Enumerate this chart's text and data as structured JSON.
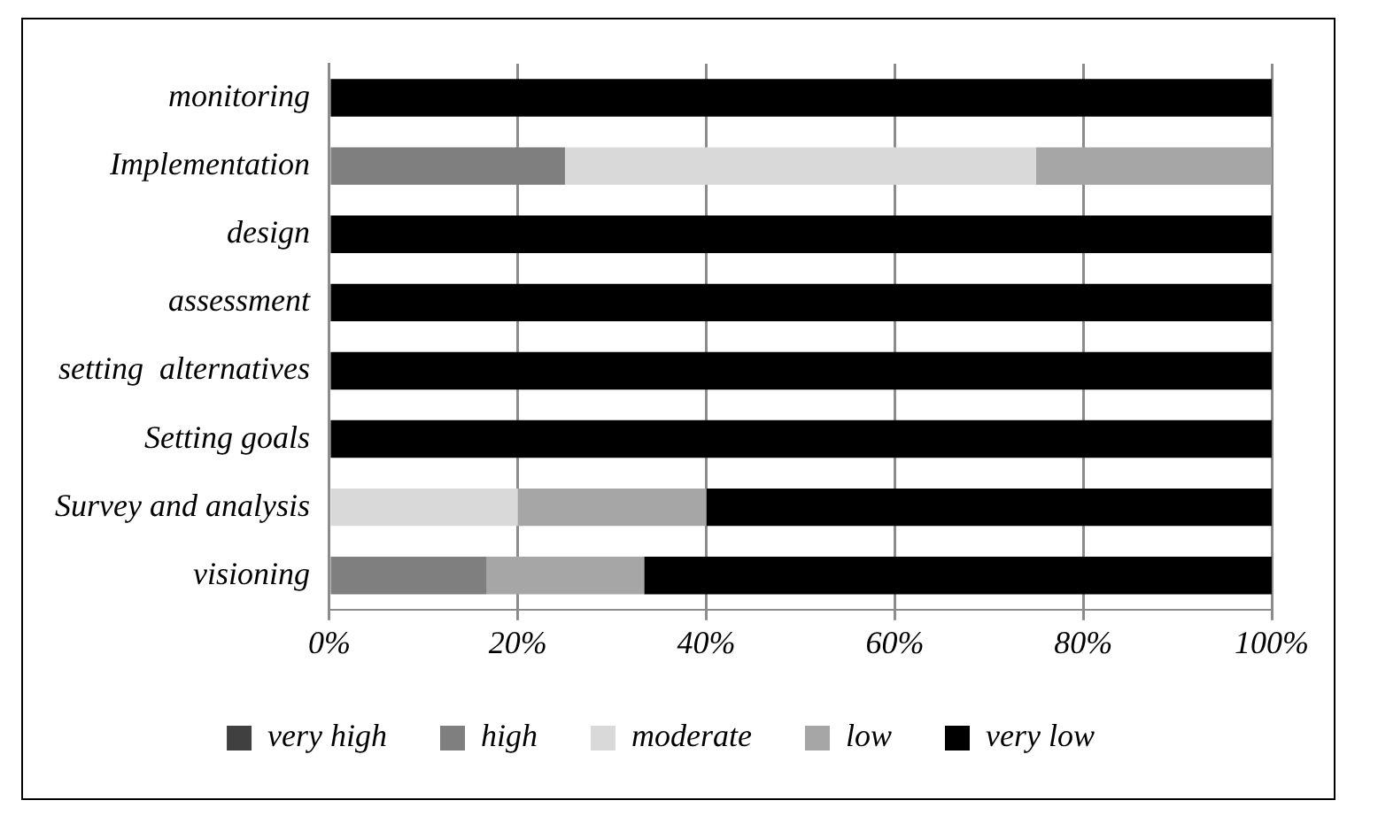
{
  "chart_data": {
    "type": "bar",
    "orientation": "horizontal",
    "stacked": true,
    "categories": [
      "monitoring",
      "Implementation",
      "design",
      "assessment",
      "setting  alternatives",
      "Setting goals",
      "Survey and analysis",
      "visioning"
    ],
    "series": [
      {
        "name": "very high",
        "color": "#404040",
        "values": [
          0,
          0,
          0,
          0,
          0,
          0,
          0,
          0
        ]
      },
      {
        "name": "high",
        "color": "#7f7f7f",
        "values": [
          0,
          25,
          0,
          0,
          0,
          0,
          0,
          16.7
        ]
      },
      {
        "name": "moderate",
        "color": "#d9d9d9",
        "values": [
          0,
          50,
          0,
          0,
          0,
          0,
          20,
          0
        ]
      },
      {
        "name": "low",
        "color": "#a6a6a6",
        "values": [
          0,
          25,
          0,
          0,
          0,
          0,
          20,
          16.7
        ]
      },
      {
        "name": "very low",
        "color": "#000000",
        "values": [
          100,
          0,
          100,
          100,
          100,
          100,
          60,
          66.6
        ]
      }
    ],
    "xlim": [
      0,
      100
    ],
    "xticks": [
      {
        "value": 0,
        "label": "0%"
      },
      {
        "value": 20,
        "label": "20%"
      },
      {
        "value": 40,
        "label": "40%"
      },
      {
        "value": 60,
        "label": "60%"
      },
      {
        "value": 80,
        "label": "80%"
      },
      {
        "value": 100,
        "label": "100%"
      }
    ],
    "grid": "x",
    "legend": "bottom"
  }
}
